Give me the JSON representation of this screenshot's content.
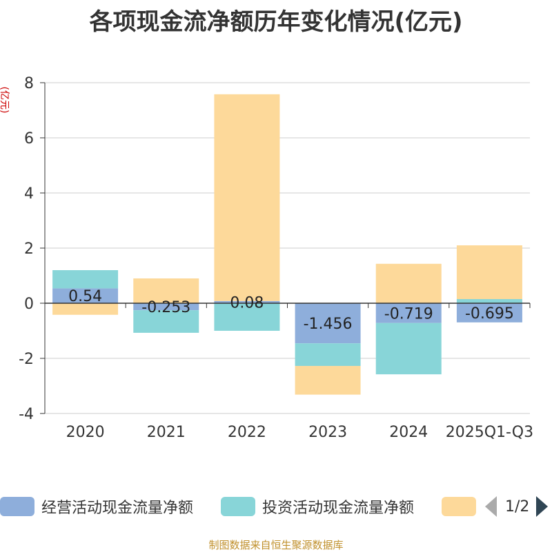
{
  "chart_data": {
    "type": "bar",
    "stacked": true,
    "title": "各项现金流净额历年变化情况(亿元)",
    "ylabel": "(亿元)",
    "xlabel": "",
    "ylim": [
      -4,
      8
    ],
    "yticks": [
      -4,
      -2,
      0,
      2,
      4,
      6,
      8
    ],
    "grid": true,
    "categories": [
      "2020",
      "2021",
      "2022",
      "2023",
      "2024",
      "2025Q1-Q3"
    ],
    "series": [
      {
        "name": "经营活动现金流量净额",
        "color": "#8eaedb",
        "values": [
          0.54,
          -0.253,
          0.08,
          -1.456,
          -0.719,
          -0.695
        ],
        "labels": [
          "0.54",
          "-0.253",
          "0.08",
          "-1.456",
          "-0.719",
          "-0.695"
        ]
      },
      {
        "name": "投资活动现金流量净额",
        "color": "#88d5d8",
        "values": [
          0.66,
          -0.82,
          -1.0,
          -0.82,
          -1.86,
          0.15
        ],
        "labels": []
      },
      {
        "name": "",
        "color": "#fdd99a",
        "values": [
          -0.42,
          0.9,
          7.5,
          -1.04,
          1.43,
          1.95
        ],
        "labels": []
      }
    ],
    "legend_position": "bottom",
    "legend_page": "1/2"
  },
  "footer": {
    "source": "制图数据来自恒生聚源数据库"
  }
}
